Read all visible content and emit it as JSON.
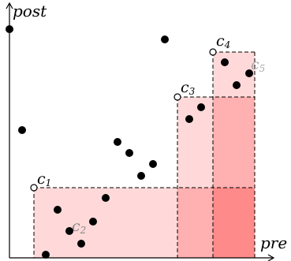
{
  "axes": {
    "y_label": "post",
    "x_label": "pre"
  },
  "regions": [
    {
      "name": "c",
      "sub": "1",
      "color": "#000000"
    },
    {
      "name": "c",
      "sub": "2",
      "color": "#888888"
    },
    {
      "name": "c",
      "sub": "3",
      "color": "#000000"
    },
    {
      "name": "c",
      "sub": "4",
      "color": "#000000"
    },
    {
      "name": "c",
      "sub": "5",
      "color": "#aaaaaa"
    }
  ],
  "colors": {
    "light_pink": "#ffd9d9",
    "mid_pink": "#ffb0b0",
    "dark_pink": "#ff8a8a",
    "points": "#000000"
  }
}
